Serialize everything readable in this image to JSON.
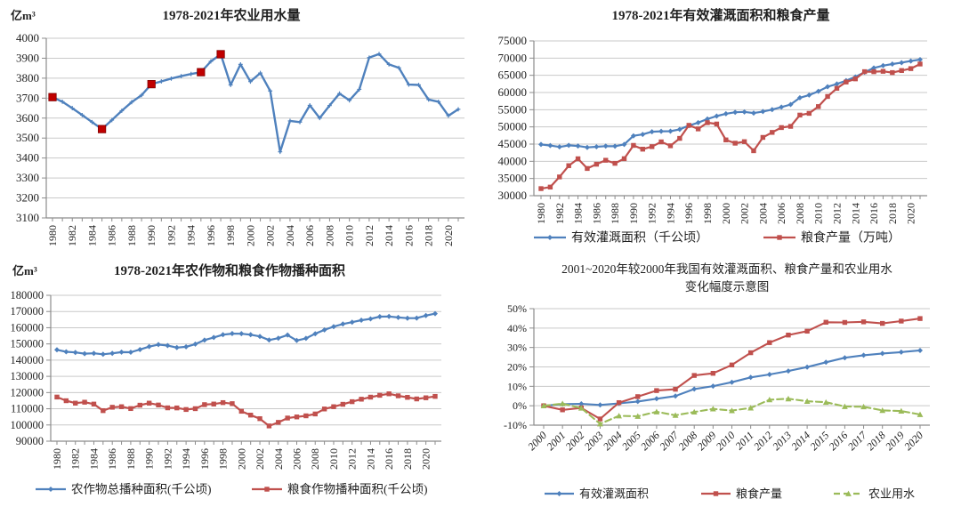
{
  "page": {
    "background": "#ffffff"
  },
  "colors": {
    "blue": "#4F81BD",
    "red": "#C0504D",
    "green": "#9BBB59",
    "highlight_red": "#C00000",
    "grid": "#C9C9C9",
    "axis": "#8C8C8C",
    "text": "#1f1f1f"
  },
  "chart_data": [
    {
      "id": "agricultural-water-use",
      "type": "line",
      "title": "1978-2021年农业用水量",
      "unit_label": "亿m³",
      "xlabel": "",
      "ylabel": "亿m³",
      "ylim": [
        3100,
        4000
      ],
      "y_step": 100,
      "y_format": "plain",
      "grid": true,
      "x_label_every": 2,
      "x": [
        1980,
        1981,
        1982,
        1983,
        1984,
        1985,
        1986,
        1987,
        1988,
        1989,
        1990,
        1991,
        1992,
        1993,
        1994,
        1995,
        1996,
        1997,
        1998,
        1999,
        2000,
        2001,
        2002,
        2003,
        2004,
        2005,
        2006,
        2007,
        2008,
        2009,
        2010,
        2011,
        2012,
        2013,
        2014,
        2015,
        2016,
        2017,
        2018,
        2019,
        2020,
        2021
      ],
      "series": [
        {
          "name": "农业用水量",
          "color": "blue",
          "marker": "plus",
          "values": [
            3705,
            3682,
            3650,
            3615,
            3580,
            3545,
            3590,
            3637,
            3680,
            3715,
            3770,
            3784,
            3798,
            3810,
            3821,
            3830,
            3884,
            3920,
            3766,
            3869,
            3783,
            3826,
            3736,
            3431,
            3586,
            3580,
            3664,
            3600,
            3663,
            3723,
            3689,
            3744,
            3903,
            3921,
            3869,
            3852,
            3768,
            3766,
            3693,
            3682,
            3612,
            3644
          ],
          "highlight": {
            "years": [
              1980,
              1985,
              1990,
              1995,
              1997
            ],
            "marker": "square",
            "color": "highlight_red"
          }
        }
      ],
      "legend": null
    },
    {
      "id": "irrigated-area-and-grain-output",
      "type": "line",
      "title": "1978-2021年有效灌溉面积和粮食产量",
      "unit_label": "",
      "ylim": [
        30000,
        75000
      ],
      "y_step": 5000,
      "y_format": "plain",
      "grid": true,
      "x_label_every": 2,
      "x": [
        1980,
        1981,
        1982,
        1983,
        1984,
        1985,
        1986,
        1987,
        1988,
        1989,
        1990,
        1991,
        1992,
        1993,
        1994,
        1995,
        1996,
        1997,
        1998,
        1999,
        2000,
        2001,
        2002,
        2003,
        2004,
        2005,
        2006,
        2007,
        2008,
        2009,
        2010,
        2011,
        2012,
        2013,
        2014,
        2015,
        2016,
        2017,
        2018,
        2019,
        2020,
        2021
      ],
      "series": [
        {
          "name": "有效灌溉面积（千公顷）",
          "color": "blue",
          "marker": "diamond",
          "values": [
            44888,
            44574,
            44177,
            44644,
            44453,
            44036,
            44226,
            44403,
            44376,
            44917,
            47403,
            47822,
            48590,
            48728,
            48759,
            49281,
            50381,
            51239,
            52296,
            53158,
            53820,
            54249,
            54355,
            54014,
            54478,
            55029,
            55750,
            56518,
            58472,
            59261,
            60348,
            61682,
            62491,
            63473,
            64540,
            65873,
            67141,
            67816,
            68272,
            68679,
            69161,
            69560
          ]
        },
        {
          "name": "粮食产量（万吨）",
          "color": "red",
          "marker": "square",
          "values": [
            32056,
            32502,
            35450,
            38728,
            40731,
            37911,
            39151,
            40298,
            39408,
            40755,
            44624,
            43529,
            44266,
            45649,
            44510,
            46662,
            50454,
            49417,
            51230,
            50839,
            46218,
            45264,
            45706,
            43070,
            46947,
            48402,
            49804,
            50160,
            53434,
            53940,
            55911,
            58849,
            61223,
            63048,
            63965,
            66060,
            66044,
            66161,
            65789,
            66384,
            66949,
            68285
          ]
        }
      ],
      "legend": {
        "position": "bottom"
      }
    },
    {
      "id": "sown-area-crops-and-grain",
      "type": "line",
      "title": "1978-2021年农作物和粮食作物播种面积",
      "unit_label": "亿m³",
      "ylim": [
        90000,
        180000
      ],
      "y_step": 10000,
      "y_format": "plain",
      "grid": true,
      "x_label_every": 2,
      "x": [
        1980,
        1981,
        1982,
        1983,
        1984,
        1985,
        1986,
        1987,
        1988,
        1989,
        1990,
        1991,
        1992,
        1993,
        1994,
        1995,
        1996,
        1997,
        1998,
        1999,
        2000,
        2001,
        2002,
        2003,
        2004,
        2005,
        2006,
        2007,
        2008,
        2009,
        2010,
        2011,
        2012,
        2013,
        2014,
        2015,
        2016,
        2017,
        2018,
        2019,
        2020,
        2021
      ],
      "series": [
        {
          "name": "农作物总播种面积(千公顷)",
          "color": "blue",
          "marker": "diamond",
          "values": [
            146380,
            145157,
            144755,
            143993,
            144221,
            143626,
            144204,
            144957,
            144869,
            146554,
            148362,
            149586,
            149007,
            147741,
            148241,
            149879,
            152381,
            153969,
            155706,
            156373,
            156300,
            155708,
            154636,
            152415,
            153553,
            155488,
            152149,
            153464,
            156266,
            158639,
            160675,
            162283,
            163416,
            164626,
            165446,
            166829,
            166939,
            166332,
            165902,
            165931,
            167487,
            168695
          ]
        },
        {
          "name": "粮食作物播种面积(千公顷)",
          "color": "red",
          "marker": "square",
          "values": [
            117234,
            114958,
            113462,
            114047,
            112884,
            108845,
            110933,
            111268,
            110123,
            112205,
            113466,
            112314,
            110560,
            110509,
            109544,
            110060,
            112548,
            112912,
            113787,
            113161,
            108463,
            106080,
            103891,
            99410,
            101606,
            104278,
            104958,
            105638,
            106793,
            109866,
            111267,
            112755,
            114368,
            115907,
            117174,
            118303,
            119230,
            117989,
            117038,
            116064,
            116768,
            117631
          ]
        }
      ],
      "legend": {
        "position": "bottom"
      }
    },
    {
      "id": "percent-change-vs-2000",
      "type": "line",
      "title": "2001~2020年较2000年我国有效灌溉面积、粮食产量和农业用水",
      "title_line2": "变化幅度示意图",
      "unit_label": "",
      "ylim": [
        -10,
        50
      ],
      "y_step": 10,
      "y_format": "percent",
      "grid": true,
      "x_label_every": 1,
      "x": [
        2000,
        2001,
        2002,
        2003,
        2004,
        2005,
        2006,
        2007,
        2008,
        2009,
        2010,
        2011,
        2012,
        2013,
        2014,
        2015,
        2016,
        2017,
        2018,
        2019,
        2020
      ],
      "series": [
        {
          "name": "有效灌溉面积",
          "color": "blue",
          "marker": "diamond",
          "values": [
            0,
            0.8,
            1.0,
            0.4,
            1.2,
            2.2,
            3.6,
            5.0,
            8.6,
            10.1,
            12.1,
            14.6,
            16.1,
            17.9,
            19.9,
            22.4,
            24.7,
            26.0,
            26.9,
            27.6,
            28.5
          ]
        },
        {
          "name": "粮食产量",
          "color": "red",
          "marker": "square",
          "values": [
            0,
            -2.1,
            -1.1,
            -6.8,
            1.6,
            4.7,
            7.8,
            8.5,
            15.6,
            16.7,
            21.0,
            27.3,
            32.5,
            36.4,
            38.4,
            43.0,
            42.9,
            43.2,
            42.4,
            43.6,
            44.9
          ]
        },
        {
          "name": "农业用水",
          "color": "green",
          "marker": "triangle",
          "dash": "7 4",
          "values": [
            0,
            1.1,
            -1.2,
            -9.3,
            -5.2,
            -5.4,
            -3.1,
            -4.9,
            -3.2,
            -1.6,
            -2.5,
            -1.1,
            3.1,
            3.6,
            2.3,
            1.8,
            -0.4,
            -0.5,
            -2.4,
            -2.7,
            -4.5
          ]
        }
      ],
      "legend": {
        "position": "bottom"
      }
    }
  ]
}
